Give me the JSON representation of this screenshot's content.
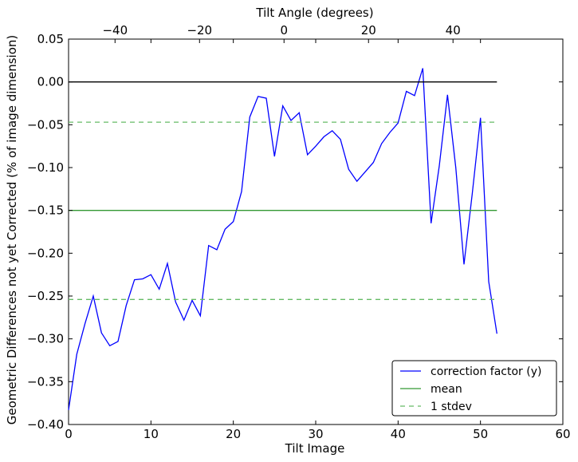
{
  "chart_data": {
    "type": "line",
    "title": "",
    "xlabel": "Tilt Image",
    "ylabel": "Geometric Differences not yet Corrected (% of image dimension)",
    "top_xlabel": "Tilt Angle (degrees)",
    "xlim": [
      0,
      60
    ],
    "ylim": [
      -0.4,
      0.05
    ],
    "top_xlim": [
      -51,
      66
    ],
    "x_ticks": [
      "0",
      "10",
      "20",
      "30",
      "40",
      "50",
      "60"
    ],
    "y_ticks": [
      "0.05",
      "0.00",
      "−0.05",
      "−0.10",
      "−0.15",
      "−0.20",
      "−0.25",
      "−0.30",
      "−0.35",
      "−0.40"
    ],
    "top_x_ticks": [
      "−40",
      "−20",
      "0",
      "20",
      "40"
    ],
    "grid": false,
    "legend_position": "lower-right",
    "series": [
      {
        "name": "correction factor (y)",
        "color": "#0000ff",
        "style": "solid",
        "x": [
          0,
          1,
          2,
          3,
          4,
          5,
          6,
          7,
          8,
          9,
          10,
          11,
          12,
          13,
          14,
          15,
          16,
          17,
          18,
          19,
          20,
          21,
          22,
          23,
          24,
          25,
          26,
          27,
          28,
          29,
          30,
          31,
          32,
          33,
          34,
          35,
          36,
          37,
          38,
          39,
          40,
          41,
          42,
          43,
          44,
          45,
          46,
          47,
          48,
          49,
          50,
          51,
          52
        ],
        "y": [
          -0.383,
          -0.318,
          -0.282,
          -0.25,
          -0.293,
          -0.308,
          -0.303,
          -0.261,
          -0.231,
          -0.23,
          -0.225,
          -0.242,
          -0.212,
          -0.257,
          -0.278,
          -0.255,
          -0.273,
          -0.191,
          -0.196,
          -0.172,
          -0.163,
          -0.128,
          -0.041,
          -0.017,
          -0.019,
          -0.087,
          -0.028,
          -0.045,
          -0.036,
          -0.085,
          -0.075,
          -0.064,
          -0.057,
          -0.067,
          -0.102,
          -0.116,
          -0.105,
          -0.094,
          -0.072,
          -0.059,
          -0.048,
          -0.011,
          -0.016,
          0.016,
          -0.165,
          -0.098,
          -0.015,
          -0.1,
          -0.213,
          -0.131,
          -0.042,
          -0.233,
          -0.294
        ]
      },
      {
        "name": "mean",
        "color": "#339933",
        "style": "solid",
        "x": [
          0,
          52
        ],
        "y": [
          -0.15,
          -0.15
        ]
      },
      {
        "name": "1 stdev",
        "color": "#66bb66",
        "style": "dashed",
        "x": [
          0,
          52
        ],
        "y": [
          -0.047,
          -0.047
        ]
      },
      {
        "name": "",
        "color": "#66bb66",
        "style": "dashed",
        "x": [
          0,
          52
        ],
        "y": [
          -0.254,
          -0.254
        ]
      },
      {
        "name": "",
        "color": "#000000",
        "style": "solid",
        "x": [
          0,
          52
        ],
        "y": [
          0.0,
          0.0
        ]
      }
    ],
    "legend": [
      "correction factor (y)",
      "mean",
      "1 stdev"
    ]
  }
}
